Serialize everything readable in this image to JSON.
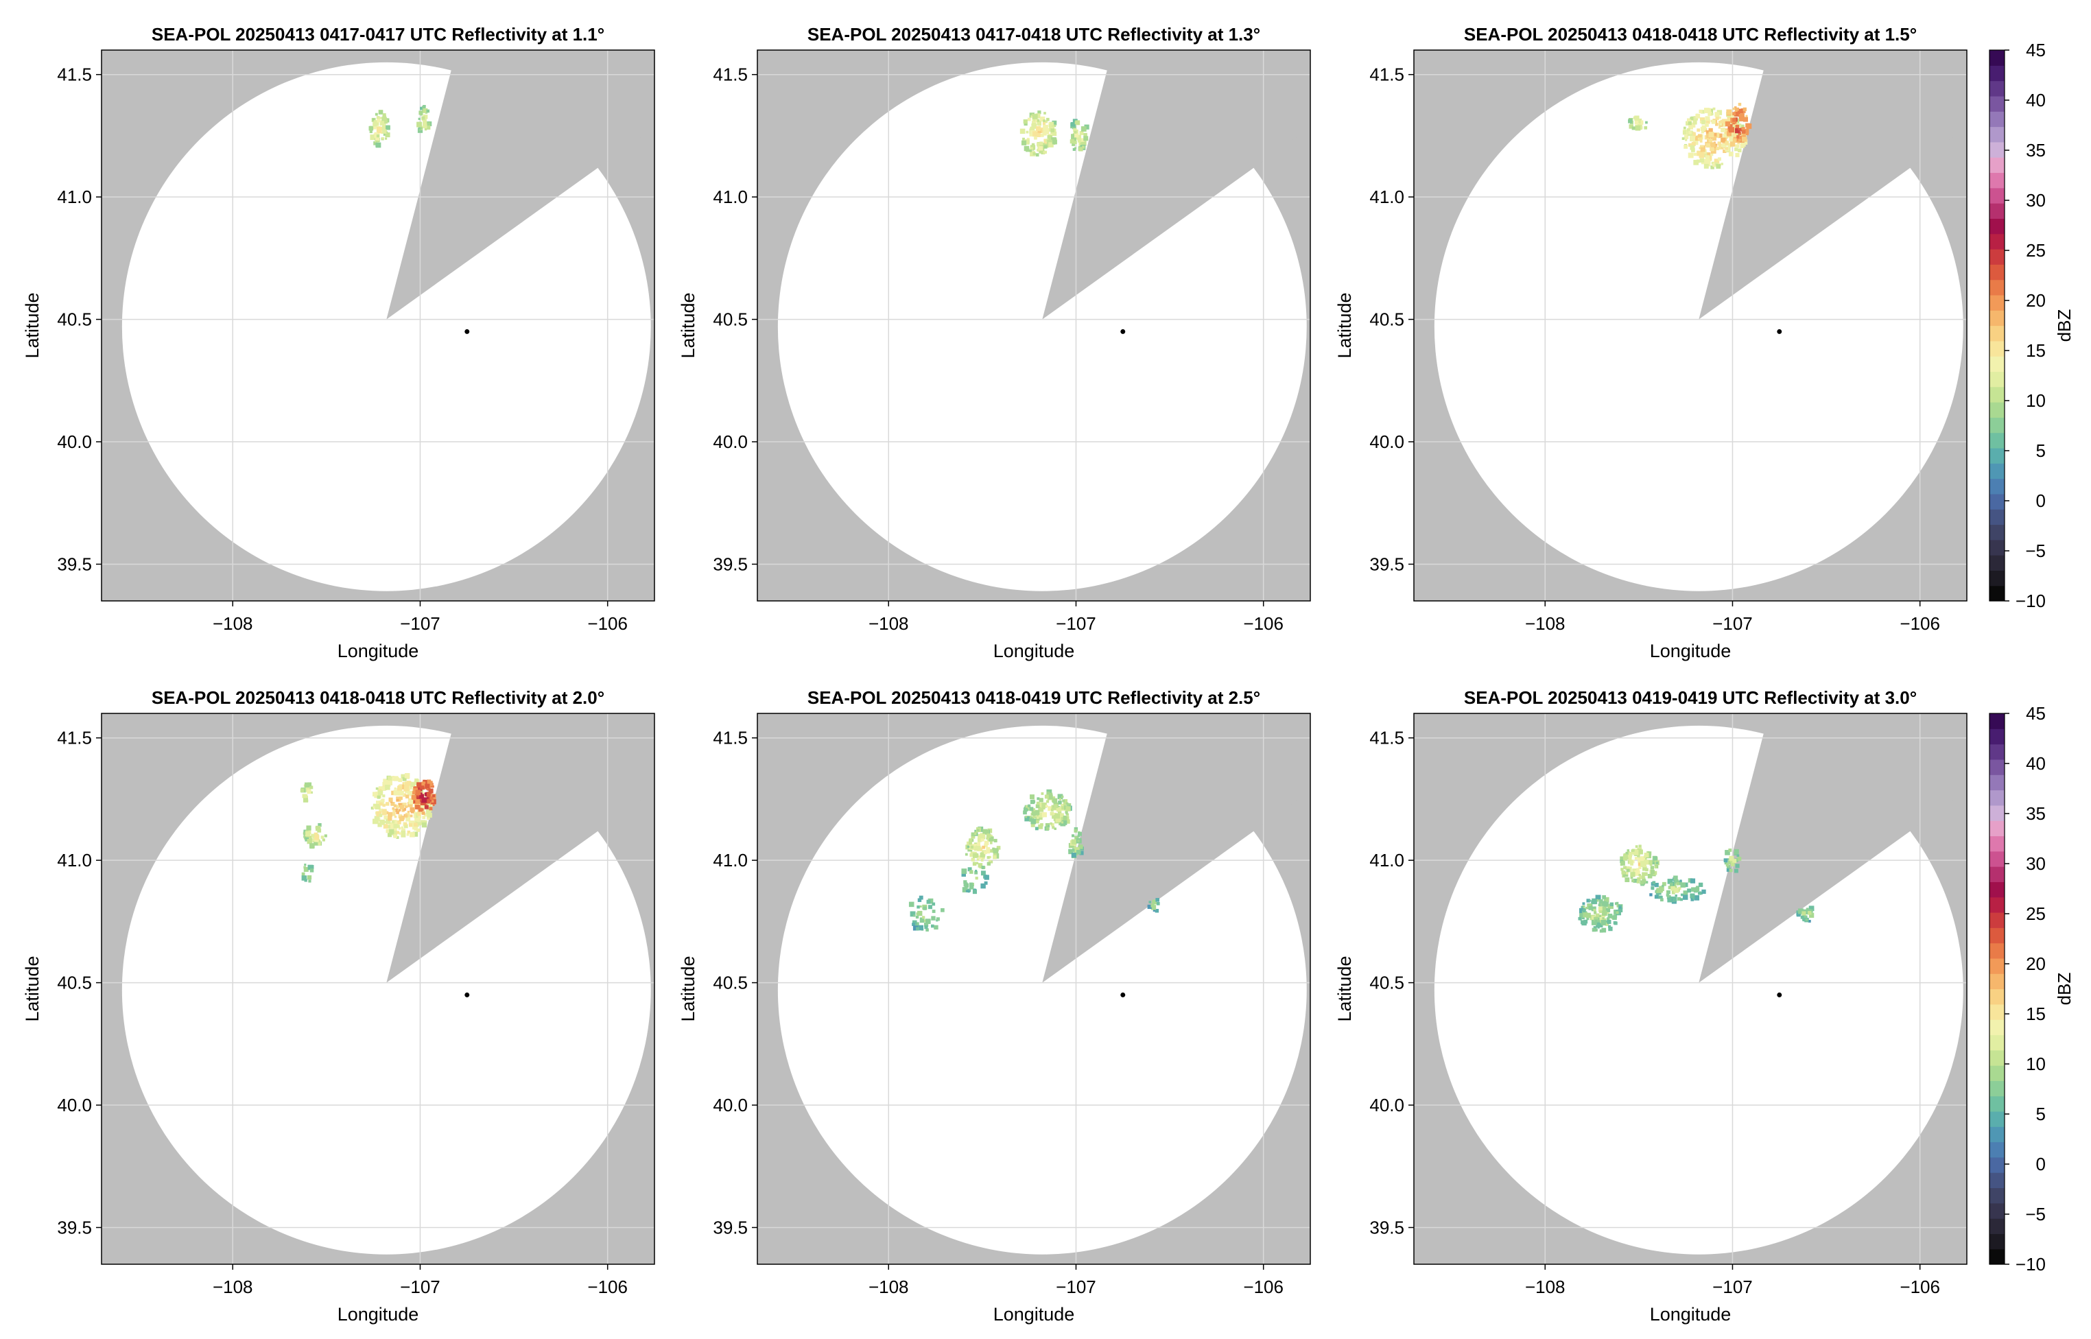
{
  "figure": {
    "colors": {
      "masked": "#bebebe",
      "coverage": "#ffffff",
      "grid": "#d9d9d9",
      "frame": "#000000",
      "radar_site": "#000000"
    }
  },
  "colorbar": {
    "label": "dBZ",
    "ticks": [
      "45",
      "40",
      "35",
      "30",
      "25",
      "20",
      "15",
      "10",
      "5",
      "0",
      "−5",
      "−10"
    ],
    "range": [
      -10,
      45
    ],
    "colormap": [
      "#0a0a0a",
      "#1c1a22",
      "#2b2838",
      "#37354f",
      "#3f4466",
      "#455483",
      "#4a68a2",
      "#4c7fb2",
      "#4f97b4",
      "#5aaead",
      "#6fc0a1",
      "#8cce98",
      "#a9d991",
      "#c6e494",
      "#e1eea2",
      "#f2f2ae",
      "#f8e59b",
      "#f8d183",
      "#f6b76c",
      "#f29a58",
      "#e97b48",
      "#dc5a3e",
      "#cc3c3e",
      "#b82044",
      "#a0104c",
      "#b5306e",
      "#cc5290",
      "#de78ad",
      "#e6a0c8",
      "#cdb0d8",
      "#b098cb",
      "#9478b8",
      "#7a56a0",
      "#603888",
      "#481d70",
      "#360a55"
    ]
  },
  "chart_data": [
    {
      "type": "heatmap",
      "title": "SEA-POL 20250413 0417-0417 UTC Reflectivity at 1.1°",
      "xlabel": "Longitude",
      "ylabel": "Latitude",
      "xlim": [
        -108.7,
        -105.75
      ],
      "ylim": [
        39.35,
        41.6
      ],
      "xticks": [
        -108,
        -107,
        -106
      ],
      "xtick_labels": [
        "−108",
        "−107",
        "−106"
      ],
      "yticks": [
        39.5,
        40.0,
        40.5,
        41.0,
        41.5
      ],
      "ytick_labels": [
        "39.5",
        "40.0",
        "40.5",
        "41.0",
        "41.5"
      ],
      "grid": true,
      "radar_site": {
        "lon": -106.75,
        "lat": 40.45
      },
      "coverage_center": {
        "lon": -107.18,
        "lat": 40.47
      },
      "coverage_radius_deg_lat": 1.08,
      "blocked_sector": {
        "apex_lon": -107.18,
        "apex_lat": 40.5,
        "edge1": {
          "lon": -106.83,
          "lat": 41.53
        },
        "edge2": {
          "lon": -106.05,
          "lat": 41.12
        }
      },
      "echoes": [
        {
          "lon": -107.22,
          "lat": 41.28,
          "rx": 0.05,
          "ry": 0.08,
          "dbz": 15,
          "n": 60
        },
        {
          "lon": -106.98,
          "lat": 41.31,
          "rx": 0.03,
          "ry": 0.06,
          "dbz": 14,
          "n": 30
        }
      ]
    },
    {
      "type": "heatmap",
      "title": "SEA-POL 20250413 0417-0418 UTC Reflectivity at 1.3°",
      "xlabel": "Longitude",
      "ylabel": "Latitude",
      "xlim": [
        -108.7,
        -105.75
      ],
      "ylim": [
        39.35,
        41.6
      ],
      "xticks": [
        -108,
        -107,
        -106
      ],
      "xtick_labels": [
        "−108",
        "−107",
        "−106"
      ],
      "yticks": [
        39.5,
        40.0,
        40.5,
        41.0,
        41.5
      ],
      "ytick_labels": [
        "39.5",
        "40.0",
        "40.5",
        "41.0",
        "41.5"
      ],
      "grid": true,
      "radar_site": {
        "lon": -106.75,
        "lat": 40.45
      },
      "coverage_center": {
        "lon": -107.18,
        "lat": 40.47
      },
      "coverage_radius_deg_lat": 1.08,
      "blocked_sector": {
        "apex_lon": -107.18,
        "apex_lat": 40.5,
        "edge1": {
          "lon": -106.83,
          "lat": 41.53
        },
        "edge2": {
          "lon": -106.05,
          "lat": 41.12
        }
      },
      "echoes": [
        {
          "lon": -107.2,
          "lat": 41.26,
          "rx": 0.1,
          "ry": 0.09,
          "dbz": 16,
          "n": 110
        },
        {
          "lon": -106.98,
          "lat": 41.25,
          "rx": 0.05,
          "ry": 0.07,
          "dbz": 14,
          "n": 40
        }
      ]
    },
    {
      "type": "heatmap",
      "title": "SEA-POL 20250413 0418-0418 UTC Reflectivity at 1.5°",
      "xlabel": "Longitude",
      "ylabel": "Latitude",
      "xlim": [
        -108.7,
        -105.75
      ],
      "ylim": [
        39.35,
        41.6
      ],
      "xticks": [
        -108,
        -107,
        -106
      ],
      "xtick_labels": [
        "−108",
        "−107",
        "−106"
      ],
      "yticks": [
        39.5,
        40.0,
        40.5,
        41.0,
        41.5
      ],
      "ytick_labels": [
        "39.5",
        "40.0",
        "40.5",
        "41.0",
        "41.5"
      ],
      "grid": true,
      "radar_site": {
        "lon": -106.75,
        "lat": 40.45
      },
      "coverage_center": {
        "lon": -107.18,
        "lat": 40.47
      },
      "coverage_radius_deg_lat": 1.08,
      "blocked_sector": {
        "apex_lon": -107.18,
        "apex_lat": 40.5,
        "edge1": {
          "lon": -106.83,
          "lat": 41.53
        },
        "edge2": {
          "lon": -106.05,
          "lat": 41.12
        }
      },
      "echoes": [
        {
          "lon": -107.1,
          "lat": 41.24,
          "rx": 0.17,
          "ry": 0.12,
          "dbz": 18,
          "n": 220
        },
        {
          "lon": -106.97,
          "lat": 41.3,
          "rx": 0.06,
          "ry": 0.08,
          "dbz": 24,
          "n": 60
        },
        {
          "lon": -107.5,
          "lat": 41.3,
          "rx": 0.05,
          "ry": 0.03,
          "dbz": 15,
          "n": 20
        }
      ]
    },
    {
      "type": "heatmap",
      "title": "SEA-POL 20250413 0418-0418 UTC Reflectivity at 2.0°",
      "xlabel": "Longitude",
      "ylabel": "Latitude",
      "xlim": [
        -108.7,
        -105.75
      ],
      "ylim": [
        39.35,
        41.6
      ],
      "xticks": [
        -108,
        -107,
        -106
      ],
      "xtick_labels": [
        "−108",
        "−107",
        "−106"
      ],
      "yticks": [
        39.5,
        40.0,
        40.5,
        41.0,
        41.5
      ],
      "ytick_labels": [
        "39.5",
        "40.0",
        "40.5",
        "41.0",
        "41.5"
      ],
      "grid": true,
      "radar_site": {
        "lon": -106.75,
        "lat": 40.45
      },
      "coverage_center": {
        "lon": -107.18,
        "lat": 40.47
      },
      "coverage_radius_deg_lat": 1.08,
      "blocked_sector": {
        "apex_lon": -107.18,
        "apex_lat": 40.5,
        "edge1": {
          "lon": -106.83,
          "lat": 41.53
        },
        "edge2": {
          "lon": -106.05,
          "lat": 41.12
        }
      },
      "echoes": [
        {
          "lon": -107.1,
          "lat": 41.22,
          "rx": 0.16,
          "ry": 0.13,
          "dbz": 18,
          "n": 240
        },
        {
          "lon": -106.98,
          "lat": 41.26,
          "rx": 0.06,
          "ry": 0.07,
          "dbz": 26,
          "n": 70
        },
        {
          "lon": -107.56,
          "lat": 41.1,
          "rx": 0.06,
          "ry": 0.05,
          "dbz": 14,
          "n": 40
        },
        {
          "lon": -107.6,
          "lat": 41.28,
          "rx": 0.03,
          "ry": 0.04,
          "dbz": 15,
          "n": 15
        },
        {
          "lon": -107.6,
          "lat": 40.95,
          "rx": 0.03,
          "ry": 0.04,
          "dbz": 12,
          "n": 12
        }
      ]
    },
    {
      "type": "heatmap",
      "title": "SEA-POL 20250413 0418-0419 UTC Reflectivity at 2.5°",
      "xlabel": "Longitude",
      "ylabel": "Latitude",
      "xlim": [
        -108.7,
        -105.75
      ],
      "ylim": [
        39.35,
        41.6
      ],
      "xticks": [
        -108,
        -107,
        -106
      ],
      "xtick_labels": [
        "−108",
        "−107",
        "−106"
      ],
      "yticks": [
        39.5,
        40.0,
        40.5,
        41.0,
        41.5
      ],
      "ytick_labels": [
        "39.5",
        "40.0",
        "40.5",
        "41.0",
        "41.5"
      ],
      "grid": true,
      "radar_site": {
        "lon": -106.75,
        "lat": 40.45
      },
      "coverage_center": {
        "lon": -107.18,
        "lat": 40.47
      },
      "coverage_radius_deg_lat": 1.08,
      "blocked_sector": {
        "apex_lon": -107.18,
        "apex_lat": 40.5,
        "edge1": {
          "lon": -106.83,
          "lat": 41.53
        },
        "edge2": {
          "lon": -106.05,
          "lat": 41.12
        }
      },
      "echoes": [
        {
          "lon": -107.5,
          "lat": 41.05,
          "rx": 0.09,
          "ry": 0.08,
          "dbz": 15,
          "n": 90
        },
        {
          "lon": -107.15,
          "lat": 41.2,
          "rx": 0.13,
          "ry": 0.08,
          "dbz": 14,
          "n": 120
        },
        {
          "lon": -107.0,
          "lat": 41.07,
          "rx": 0.04,
          "ry": 0.06,
          "dbz": 12,
          "n": 30
        },
        {
          "lon": -107.8,
          "lat": 40.78,
          "rx": 0.1,
          "ry": 0.07,
          "dbz": 11,
          "n": 40
        },
        {
          "lon": -107.55,
          "lat": 40.92,
          "rx": 0.08,
          "ry": 0.05,
          "dbz": 11,
          "n": 25
        },
        {
          "lon": -106.58,
          "lat": 40.82,
          "rx": 0.03,
          "ry": 0.03,
          "dbz": 10,
          "n": 10
        }
      ]
    },
    {
      "type": "heatmap",
      "title": "SEA-POL 20250413 0419-0419 UTC Reflectivity at 3.0°",
      "xlabel": "Longitude",
      "ylabel": "Latitude",
      "xlim": [
        -108.7,
        -105.75
      ],
      "ylim": [
        39.35,
        41.6
      ],
      "xticks": [
        -108,
        -107,
        -106
      ],
      "xtick_labels": [
        "−108",
        "−107",
        "−106"
      ],
      "yticks": [
        39.5,
        40.0,
        40.5,
        41.0,
        41.5
      ],
      "ytick_labels": [
        "39.5",
        "40.0",
        "40.5",
        "41.0",
        "41.5"
      ],
      "grid": true,
      "radar_site": {
        "lon": -106.75,
        "lat": 40.45
      },
      "coverage_center": {
        "lon": -107.18,
        "lat": 40.47
      },
      "coverage_radius_deg_lat": 1.08,
      "blocked_sector": {
        "apex_lon": -107.18,
        "apex_lat": 40.5,
        "edge1": {
          "lon": -106.83,
          "lat": 41.53
        },
        "edge2": {
          "lon": -106.05,
          "lat": 41.12
        }
      },
      "echoes": [
        {
          "lon": -107.5,
          "lat": 40.98,
          "rx": 0.1,
          "ry": 0.08,
          "dbz": 15,
          "n": 110
        },
        {
          "lon": -107.7,
          "lat": 40.78,
          "rx": 0.12,
          "ry": 0.07,
          "dbz": 12,
          "n": 110
        },
        {
          "lon": -107.3,
          "lat": 40.88,
          "rx": 0.15,
          "ry": 0.05,
          "dbz": 11,
          "n": 80
        },
        {
          "lon": -107.0,
          "lat": 41.0,
          "rx": 0.04,
          "ry": 0.05,
          "dbz": 12,
          "n": 25
        },
        {
          "lon": -106.6,
          "lat": 40.78,
          "rx": 0.05,
          "ry": 0.03,
          "dbz": 11,
          "n": 20
        }
      ]
    }
  ]
}
